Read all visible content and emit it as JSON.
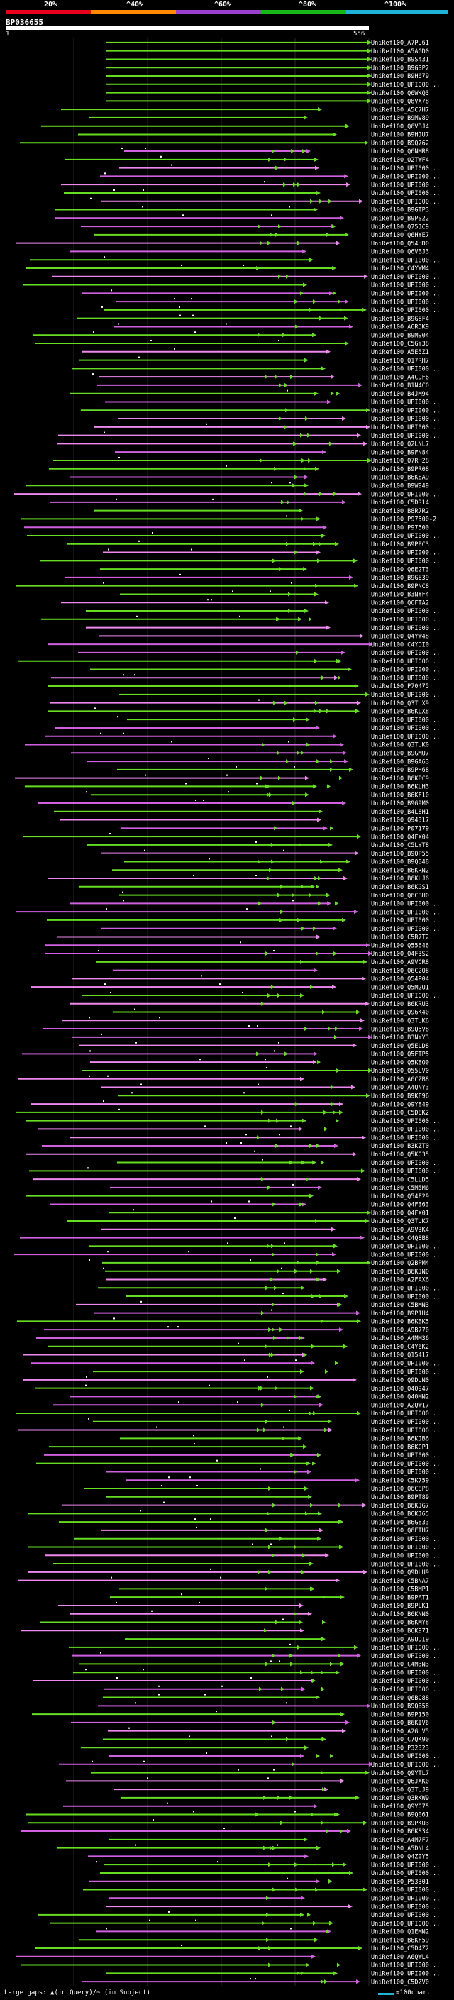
{
  "scale": {
    "marks": [
      "20%",
      "^40%",
      "^60%",
      "^80%",
      "^100%"
    ],
    "band_colors": [
      "#e8001c",
      "#ff8a00",
      "#9b3fd1",
      "#18b818",
      "#1fb3d8"
    ]
  },
  "query": {
    "id": "BP036655",
    "start_label": "1",
    "end_label": "556"
  },
  "colors": {
    "green_hit": "#66dd22",
    "pink_hit": "#d060e0",
    "light_pink_hit": "#ee88ee",
    "grid": "#2a2a2a"
  },
  "hits": [
    "UniRef100_A7PU61",
    "UniRef100_A5AGD0",
    "UniRef100_B9S431",
    "UniRef100_B9GSP2",
    "UniRef100_B9H679",
    "UniRef100_UPI000...",
    "UniRef100_Q6WKQ3",
    "UniRef100_Q8VX78",
    "UniRef100_A5C7H7",
    "UniRef100_B9MV89",
    "UniRef100_Q6VBJ4",
    "UniRef100_B9HJU7",
    "UniRef100_B9Q762",
    "UniRef100_Q6NMR8",
    "UniRef100_Q2TWF4",
    "UniRef100_UPI000...",
    "UniRef100_UPI000...",
    "UniRef100_UPI000...",
    "UniRef100_UPI000...",
    "UniRef100_UPI000...",
    "UniRef100_B9GTP3",
    "UniRef100_B9PS22",
    "UniRef100_Q75JC9",
    "UniRef100_Q6HYE7",
    "UniRef100_Q54HD0",
    "UniRef100_Q6VBJ3",
    "UniRef100_UPI000...",
    "UniRef100_C4YWM4",
    "UniRef100_UPI000...",
    "UniRef100_UPI000...",
    "UniRef100_UPI000...",
    "UniRef100_UPI000...",
    "UniRef100_UPI000...",
    "UniRef100_B9G8F4",
    "UniRef100_A6RDK9",
    "UniRef100_B9M904",
    "UniRef100_C5GY38",
    "UniRef100_A5E5Z1",
    "UniRef100_Q17RH7",
    "UniRef100_UPI000...",
    "UniRef100_A4C9F6",
    "UniRef100_B1N4C0",
    "UniRef100_B4JM94",
    "UniRef100_UPI000...",
    "UniRef100_UPI000...",
    "UniRef100_UPI000...",
    "UniRef100_UPI000...",
    "UniRef100_UPI000...",
    "UniRef100_Q2LNL7",
    "UniRef100_B9FN84",
    "UniRef100_Q7RH28",
    "UniRef100_B9PR08",
    "UniRef100_B6KEA9",
    "UniRef100_B9W949",
    "UniRef100_UPI000...",
    "UniRef100_C5DR14",
    "UniRef100_B8R7R2",
    "UniRef100_P97500-2",
    "UniRef100_P97500",
    "UniRef100_UPI000...",
    "UniRef100_B9PPC3",
    "UniRef100_UPI000...",
    "UniRef100_UPI000...",
    "UniRef100_Q6E2T3",
    "UniRef100_B9GE39",
    "UniRef100_B9PNC8",
    "UniRef100_B3NYF4",
    "UniRef100_Q6FTA2",
    "UniRef100_UPI000...",
    "UniRef100_UPI000...",
    "UniRef100_UPI000...",
    "UniRef100_Q4YW48",
    "UniRef100_C4YDI0",
    "UniRef100_UPI000...",
    "UniRef100_UPI000...",
    "UniRef100_UPI000...",
    "UniRef100_UPI000...",
    "UniRef100_P70475",
    "UniRef100_UPI000...",
    "UniRef100_Q3TUX9",
    "UniRef100_B6KLX8",
    "UniRef100_UPI000...",
    "UniRef100_UPI000...",
    "UniRef100_UPI000...",
    "UniRef100_Q3TUK0",
    "UniRef100_B9GMU7",
    "UniRef100_B9GA63",
    "UniRef100_B9PH68",
    "UniRef100_B6KPC9",
    "UniRef100_B6KLH3",
    "UniRef100_B6KF10",
    "UniRef100_B9G9M0",
    "UniRef100_B4L8H1",
    "UniRef100_Q94317",
    "UniRef100_P07179",
    "UniRef100_Q4FX04",
    "UniRef100_C5LYT8",
    "UniRef100_B9QP55",
    "UniRef100_B9QB48",
    "UniRef100_B6KRN2",
    "UniRef100_B6KLJ6",
    "UniRef100_B6KGS1",
    "UniRef100_Q6CBU0",
    "UniRef100_UPI000...",
    "UniRef100_UPI000...",
    "UniRef100_UPI000...",
    "UniRef100_UPI000...",
    "UniRef100_C5R7T2",
    "UniRef100_Q55646",
    "UniRef100_Q4F3S2",
    "UniRef100_A9VCR8",
    "UniRef100_Q6C2Q8",
    "UniRef100_Q54P04",
    "UniRef100_Q5M2U1",
    "UniRef100_UPI000...",
    "UniRef100_B6KRU3",
    "UniRef100_Q96K40",
    "UniRef100_Q3TUK6",
    "UniRef100_B9Q5V8",
    "UniRef100_B3NYY3",
    "UniRef100_Q5ELD8",
    "UniRef100_Q5FTP5",
    "UniRef100_Q5K8O0",
    "UniRef100_Q55LV0",
    "UniRef100_A6CZB8",
    "UniRef100_A4QNY3",
    "UniRef100_B9KF96",
    "UniRef100_Q9Y849",
    "UniRef100_C5DEK2",
    "UniRef100_UPI000...",
    "UniRef100_UPI000...",
    "UniRef100_UPI000...",
    "UniRef100_B3KZT0",
    "UniRef100_Q5K035",
    "UniRef100_UPI000...",
    "UniRef100_UPI000...",
    "UniRef100_C5LLD5",
    "UniRef100_C5M5M6",
    "UniRef100_Q54F29",
    "UniRef100_Q4F363",
    "UniRef100_Q4FX01",
    "UniRef100_Q3TUK7",
    "UniRef100_A9V3K4",
    "UniRef100_C4Q8B8",
    "UniRef100_UPI000...",
    "UniRef100_UPI000...",
    "UniRef100_Q2BPM4",
    "UniRef100_B6KJN0",
    "UniRef100_A2FAX6",
    "UniRef100_UPI000...",
    "UniRef100_UPI000...",
    "UniRef100_C5BMN3",
    "UniRef100_B9P1U4",
    "UniRef100_B6KBK5",
    "UniRef100_A9B770",
    "UniRef100_A4MM36",
    "UniRef100_C4Y6K2",
    "UniRef100_Q15417",
    "UniRef100_UPI000...",
    "UniRef100_UPI000...",
    "UniRef100_Q9DUN0",
    "UniRef100_Q40947",
    "UniRef100_Q40MN2",
    "UniRef100_A2QW17",
    "UniRef100_UPI000...",
    "UniRef100_UPI000...",
    "UniRef100_UPI000...",
    "UniRef100_B6KJB6",
    "UniRef100_B6KCP1",
    "UniRef100_UPI000...",
    "UniRef100_UPI000...",
    "UniRef100_UPI000...",
    "UniRef100_C5K759",
    "UniRef100_Q6C8P8",
    "UniRef100_B9PT89",
    "UniRef100_B6KJG7",
    "UniRef100_B6KJ65",
    "UniRef100_B6G833",
    "UniRef100_Q6FTH7",
    "UniRef100_UPI000...",
    "UniRef100_UPI000...",
    "UniRef100_UPI000...",
    "UniRef100_UPI000...",
    "UniRef100_Q9DLU9",
    "UniRef100_C5BNA7",
    "UniRef100_C5BMP1",
    "UniRef100_B9PAT1",
    "UniRef100_B9PLK1",
    "UniRef100_B6KNN0",
    "UniRef100_B6KMY8",
    "UniRef100_B6K971",
    "UniRef100_A9UDI9",
    "UniRef100_UPI000...",
    "UniRef100_UPI000...",
    "UniRef100_C4M3N3",
    "UniRef100_UPI000...",
    "UniRef100_UPI000...",
    "UniRef100_UPI000...",
    "UniRef100_Q6BC88",
    "UniRef100_B9QB58",
    "UniRef100_B9P150",
    "UniRef100_B6KIV6",
    "UniRef100_A2GUV5",
    "UniRef100_C7QK90",
    "UniRef100_P32323",
    "UniRef100_UPI000...",
    "UniRef100_UPI000...",
    "UniRef100_Q9YTL7",
    "UniRef100_Q6JXK0",
    "UniRef100_Q3TUJ9",
    "UniRef100_Q3RKW9",
    "UniRef100_Q9Y075",
    "UniRef100_B9Q061",
    "UniRef100_B9PKU3",
    "UniRef100_B6KS34",
    "UniRef100_A4M7F7",
    "UniRef100_A5DNL4",
    "UniRef100_Q4Z0Y5",
    "UniRef100_UPI000...",
    "UniRef100_UPI000...",
    "UniRef100_P53301",
    "UniRef100_UPI000...",
    "UniRef100_UPI000...",
    "UniRef100_UPI000...",
    "UniRef100_UPI000...",
    "UniRef100_UPI000...",
    "UniRef100_Q1EMN2",
    "UniRef100_B6KF59",
    "UniRef100_C5D4Z2",
    "UniRef100_A6QWL4",
    "UniRef100_UPI000...",
    "UniRef100_UPI000...",
    "UniRef100_C5DZV0"
  ],
  "footer": {
    "gaps_text": "Large gaps: ▲(in Query)/~ (in Subject)",
    "legend_text": "=100char."
  }
}
